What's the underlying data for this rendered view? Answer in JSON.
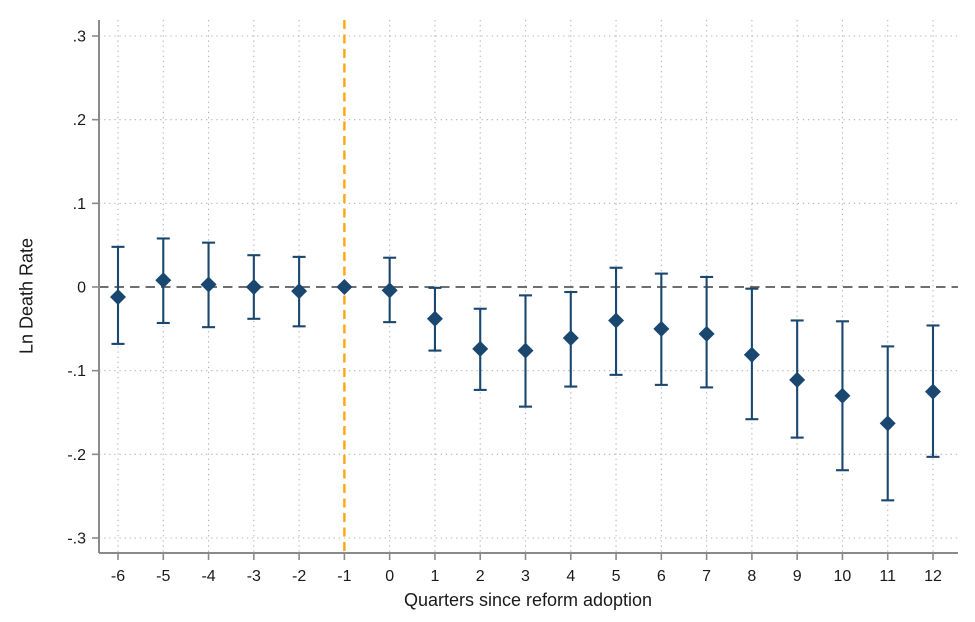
{
  "figure": {
    "background": "#ffffff"
  },
  "chart_data": {
    "type": "scatter",
    "subtype": "event-study coefficient plot with 95% confidence intervals",
    "title": "",
    "xlabel": "Quarters since reform adoption",
    "ylabel": "Ln Death Rate",
    "x_ticks": [
      -6,
      -5,
      -4,
      -3,
      -2,
      -1,
      0,
      1,
      2,
      3,
      4,
      5,
      6,
      7,
      8,
      9,
      10,
      11,
      12
    ],
    "y_ticks": [
      0.3,
      0.2,
      0.1,
      0,
      -0.1,
      -0.2,
      -0.3
    ],
    "y_tick_labels": [
      ".3",
      ".2",
      ".1",
      "0",
      "-.1",
      "-.2",
      "-.3"
    ],
    "xlim": [
      -6.45,
      12.55
    ],
    "ylim": [
      -0.32,
      0.32
    ],
    "grid": "dotted gridlines on both axes",
    "legend": "none",
    "reference_vline_x": -1,
    "zero_hline_y": 0,
    "series": [
      {
        "name": "coefficient",
        "marker": "diamond",
        "points": [
          {
            "q": -6,
            "est": -0.012,
            "lo": -0.068,
            "hi": 0.048
          },
          {
            "q": -5,
            "est": 0.008,
            "lo": -0.043,
            "hi": 0.058
          },
          {
            "q": -4,
            "est": 0.003,
            "lo": -0.048,
            "hi": 0.053
          },
          {
            "q": -3,
            "est": 0.0,
            "lo": -0.038,
            "hi": 0.038
          },
          {
            "q": -2,
            "est": -0.005,
            "lo": -0.047,
            "hi": 0.036
          },
          {
            "q": -1,
            "est": 0.0,
            "lo": null,
            "hi": null,
            "reference": true
          },
          {
            "q": 0,
            "est": -0.004,
            "lo": -0.042,
            "hi": 0.035
          },
          {
            "q": 1,
            "est": -0.038,
            "lo": -0.076,
            "hi": -0.001
          },
          {
            "q": 2,
            "est": -0.074,
            "lo": -0.123,
            "hi": -0.026
          },
          {
            "q": 3,
            "est": -0.076,
            "lo": -0.143,
            "hi": -0.01
          },
          {
            "q": 4,
            "est": -0.061,
            "lo": -0.119,
            "hi": -0.006
          },
          {
            "q": 5,
            "est": -0.04,
            "lo": -0.105,
            "hi": 0.023
          },
          {
            "q": 6,
            "est": -0.05,
            "lo": -0.117,
            "hi": 0.016
          },
          {
            "q": 7,
            "est": -0.056,
            "lo": -0.12,
            "hi": 0.012
          },
          {
            "q": 8,
            "est": -0.081,
            "lo": -0.158,
            "hi": -0.002
          },
          {
            "q": 9,
            "est": -0.111,
            "lo": -0.18,
            "hi": -0.04
          },
          {
            "q": 10,
            "est": -0.13,
            "lo": -0.219,
            "hi": -0.041
          },
          {
            "q": 11,
            "est": -0.163,
            "lo": -0.255,
            "hi": -0.071
          },
          {
            "q": 12,
            "est": -0.125,
            "lo": -0.203,
            "hi": -0.046
          }
        ]
      }
    ],
    "colors": {
      "marker": "#1a476f",
      "ci": "#1a476f",
      "vline": "#ffa611",
      "zero_line": "#5b5b5b",
      "axis": "#8a8a8a",
      "grid": "#b3b3b3",
      "text": "#1a1a1a"
    }
  }
}
